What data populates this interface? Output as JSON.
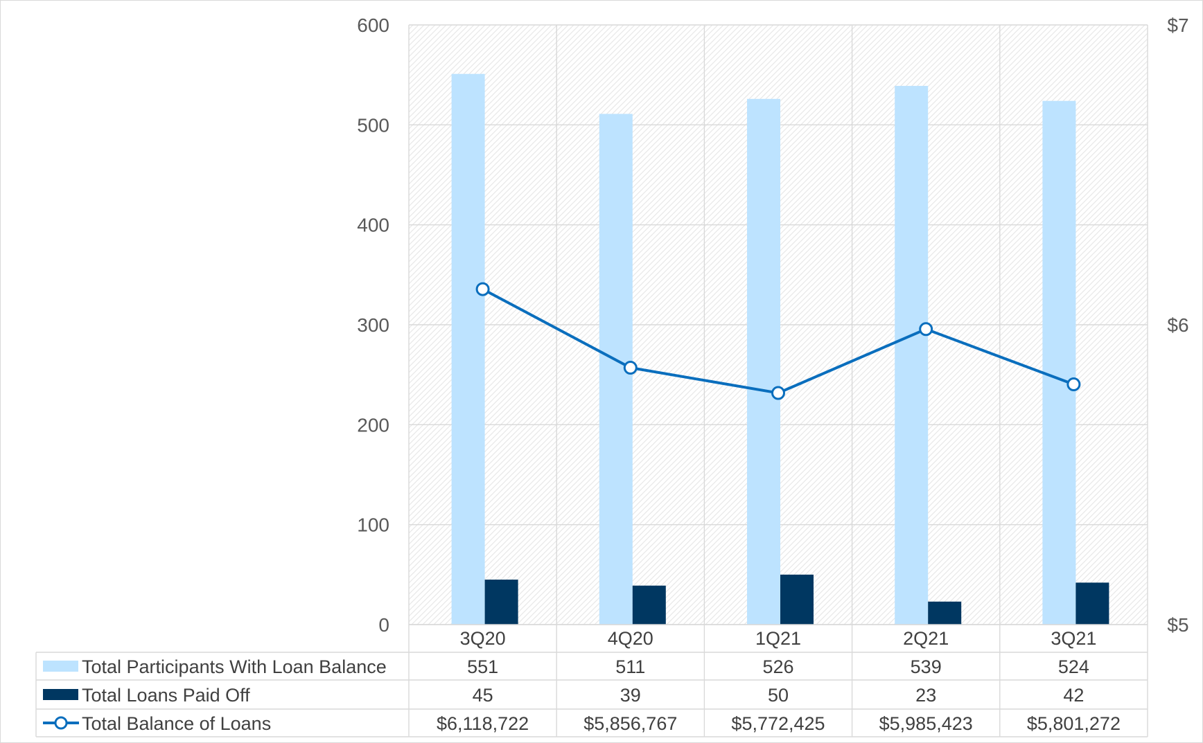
{
  "chart_data": {
    "type": "bar",
    "categories": [
      "3Q20",
      "4Q20",
      "1Q21",
      "2Q21",
      "3Q21"
    ],
    "series": [
      {
        "name": "Total Participants With Loan Balance",
        "kind": "bar",
        "axis": "left",
        "color": "#BDE3FF",
        "values": [
          551,
          511,
          526,
          539,
          524
        ],
        "display": [
          "551",
          "511",
          "526",
          "539",
          "524"
        ]
      },
      {
        "name": "Total Loans Paid Off",
        "kind": "bar",
        "axis": "left",
        "color": "#003761",
        "values": [
          45,
          39,
          50,
          23,
          42
        ],
        "display": [
          "45",
          "39",
          "50",
          "23",
          "42"
        ]
      },
      {
        "name": "Total Balance of Loans",
        "kind": "line",
        "axis": "right",
        "color": "#0A6EBD",
        "values": [
          6118722,
          5856767,
          5772425,
          5985423,
          5801272
        ],
        "display": [
          "$6,118,722",
          "$5,856,767",
          "$5,772,425",
          "$5,985,423",
          "$5,801,272"
        ]
      }
    ],
    "left_axis": {
      "ylim": [
        0,
        600
      ],
      "ticks": [
        0,
        100,
        200,
        300,
        400,
        500,
        600
      ],
      "tick_labels": [
        "0",
        "100",
        "200",
        "300",
        "400",
        "500",
        "600"
      ]
    },
    "right_axis": {
      "ylim": [
        5000000,
        7000000
      ],
      "ticks": [
        5000000,
        6000000,
        7000000
      ],
      "tick_labels": [
        "$5",
        "$6",
        "$7"
      ]
    },
    "grid": true,
    "legend": "data-table"
  },
  "colors": {
    "grid": "#d9d9d9",
    "hatch": "#e8e8e8",
    "axis_text": "#595959",
    "table_text": "#404040"
  }
}
